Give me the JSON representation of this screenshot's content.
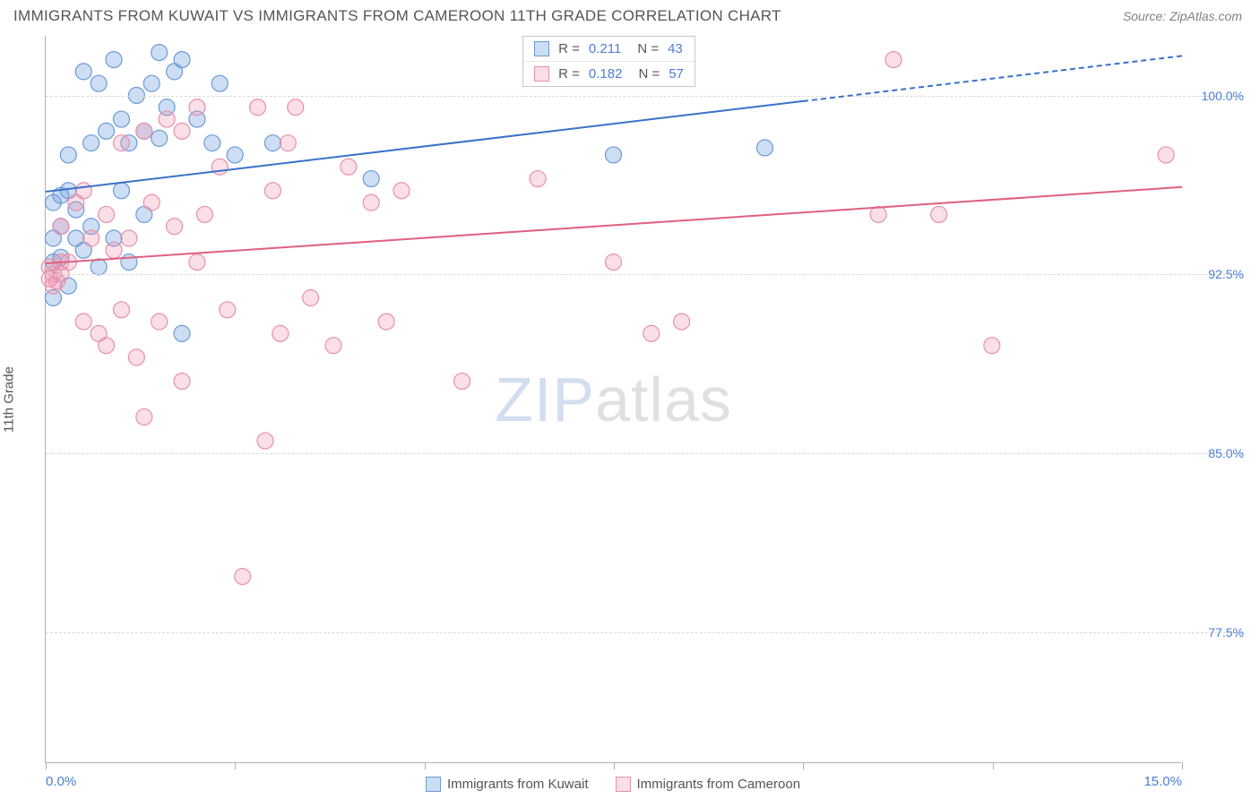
{
  "title": "IMMIGRANTS FROM KUWAIT VS IMMIGRANTS FROM CAMEROON 11TH GRADE CORRELATION CHART",
  "source_label": "Source: ZipAtlas.com",
  "y_axis_title": "11th Grade",
  "watermark": {
    "part1": "ZIP",
    "part2": "atlas"
  },
  "chart": {
    "type": "scatter",
    "xlim": [
      0.0,
      15.0
    ],
    "ylim": [
      72.0,
      102.5
    ],
    "x_ticks": [
      0.0,
      2.5,
      5.0,
      7.5,
      10.0,
      12.5,
      15.0
    ],
    "x_tick_labels_shown": {
      "0": "0.0%",
      "6": "15.0%"
    },
    "y_gridlines": [
      77.5,
      85.0,
      92.5,
      100.0
    ],
    "y_tick_labels": [
      "77.5%",
      "85.0%",
      "92.5%",
      "100.0%"
    ],
    "marker_radius": 9,
    "marker_stroke_width": 1.2,
    "background_color": "#ffffff",
    "grid_color": "#d8d8d8",
    "axis_color": "#b0b0b0",
    "series": [
      {
        "name": "Immigrants from Kuwait",
        "fill_color": "rgba(112,160,224,0.35)",
        "stroke_color": "#6b9ad6",
        "line_color": "#3a72c9",
        "R": "0.211",
        "N": "43",
        "regression": {
          "x1": 0.0,
          "y1": 96.0,
          "x2": 10.0,
          "y2": 99.8,
          "x2_dash": 15.0,
          "y2_dash": 101.7
        },
        "points": [
          [
            0.1,
            95.5
          ],
          [
            0.1,
            94.0
          ],
          [
            0.1,
            93.0
          ],
          [
            0.2,
            94.5
          ],
          [
            0.2,
            95.8
          ],
          [
            0.2,
            93.2
          ],
          [
            0.3,
            96.0
          ],
          [
            0.3,
            92.0
          ],
          [
            0.3,
            97.5
          ],
          [
            0.4,
            94.0
          ],
          [
            0.4,
            95.2
          ],
          [
            0.5,
            101.0
          ],
          [
            0.5,
            93.5
          ],
          [
            0.6,
            98.0
          ],
          [
            0.6,
            94.5
          ],
          [
            0.7,
            100.5
          ],
          [
            0.7,
            92.8
          ],
          [
            0.8,
            98.5
          ],
          [
            0.9,
            94.0
          ],
          [
            0.9,
            101.5
          ],
          [
            1.0,
            96.0
          ],
          [
            1.0,
            99.0
          ],
          [
            1.1,
            98.0
          ],
          [
            1.1,
            93.0
          ],
          [
            1.2,
            100.0
          ],
          [
            1.3,
            98.5
          ],
          [
            1.3,
            95.0
          ],
          [
            1.4,
            100.5
          ],
          [
            1.5,
            101.8
          ],
          [
            1.5,
            98.2
          ],
          [
            1.6,
            99.5
          ],
          [
            1.7,
            101.0
          ],
          [
            1.8,
            101.5
          ],
          [
            1.8,
            90.0
          ],
          [
            2.0,
            99.0
          ],
          [
            2.2,
            98.0
          ],
          [
            2.3,
            100.5
          ],
          [
            2.5,
            97.5
          ],
          [
            3.0,
            98.0
          ],
          [
            4.3,
            96.5
          ],
          [
            7.5,
            97.5
          ],
          [
            9.5,
            97.8
          ],
          [
            0.1,
            91.5
          ]
        ]
      },
      {
        "name": "Immigrants from Cameroon",
        "fill_color": "rgba(240,150,175,0.30)",
        "stroke_color": "#e790aa",
        "line_color": "#e0607f",
        "R": "0.182",
        "N": "57",
        "regression": {
          "x1": 0.0,
          "y1": 93.0,
          "x2": 15.0,
          "y2": 96.2
        },
        "points": [
          [
            0.05,
            92.8
          ],
          [
            0.1,
            92.5
          ],
          [
            0.1,
            92.0
          ],
          [
            0.15,
            92.2
          ],
          [
            0.2,
            93.0
          ],
          [
            0.2,
            92.5
          ],
          [
            0.2,
            94.5
          ],
          [
            0.3,
            93.0
          ],
          [
            0.4,
            95.5
          ],
          [
            0.5,
            96.0
          ],
          [
            0.5,
            90.5
          ],
          [
            0.6,
            94.0
          ],
          [
            0.7,
            90.0
          ],
          [
            0.8,
            89.5
          ],
          [
            0.8,
            95.0
          ],
          [
            0.9,
            93.5
          ],
          [
            1.0,
            98.0
          ],
          [
            1.0,
            91.0
          ],
          [
            1.1,
            94.0
          ],
          [
            1.2,
            89.0
          ],
          [
            1.3,
            98.5
          ],
          [
            1.3,
            86.5
          ],
          [
            1.4,
            95.5
          ],
          [
            1.5,
            90.5
          ],
          [
            1.6,
            99.0
          ],
          [
            1.7,
            94.5
          ],
          [
            1.8,
            98.5
          ],
          [
            1.8,
            88.0
          ],
          [
            2.0,
            99.5
          ],
          [
            2.0,
            93.0
          ],
          [
            2.1,
            95.0
          ],
          [
            2.3,
            97.0
          ],
          [
            2.4,
            91.0
          ],
          [
            2.6,
            79.8
          ],
          [
            2.8,
            99.5
          ],
          [
            2.9,
            85.5
          ],
          [
            3.0,
            96.0
          ],
          [
            3.1,
            90.0
          ],
          [
            3.2,
            98.0
          ],
          [
            3.3,
            99.5
          ],
          [
            3.5,
            91.5
          ],
          [
            3.8,
            89.5
          ],
          [
            4.0,
            97.0
          ],
          [
            4.3,
            95.5
          ],
          [
            4.5,
            90.5
          ],
          [
            4.7,
            96.0
          ],
          [
            5.5,
            88.0
          ],
          [
            6.5,
            96.5
          ],
          [
            7.5,
            93.0
          ],
          [
            8.0,
            90.0
          ],
          [
            8.4,
            90.5
          ],
          [
            11.0,
            95.0
          ],
          [
            11.2,
            101.5
          ],
          [
            11.8,
            95.0
          ],
          [
            12.5,
            89.5
          ],
          [
            14.8,
            97.5
          ],
          [
            0.05,
            92.3
          ]
        ]
      }
    ]
  },
  "bottom_legend": [
    {
      "label": "Immigrants from Kuwait",
      "color_idx": 0
    },
    {
      "label": "Immigrants from Cameroon",
      "color_idx": 1
    }
  ]
}
